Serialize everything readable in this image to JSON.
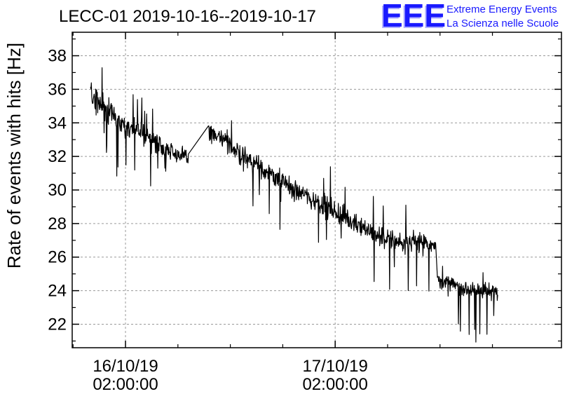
{
  "title": "LECC-01 2019-10-16--2019-10-17",
  "logo": {
    "mark": "EEE",
    "line1": "Extreme Energy Events",
    "line2": "La Scienza nelle Scuole",
    "color": "#1a1aff"
  },
  "chart_data": {
    "type": "line",
    "title": "LECC-01 2019-10-16--2019-10-17",
    "xlabel": "",
    "ylabel": "Rate of events with hits [Hz]",
    "ylim": [
      20.6,
      39.4
    ],
    "yticks": [
      22,
      24,
      26,
      28,
      30,
      32,
      34,
      36,
      38
    ],
    "xlim_hours": [
      -6.1,
      49.9
    ],
    "xticks": [
      {
        "hours": 0,
        "line1": "16/10/19",
        "line2": "02:00:00"
      },
      {
        "hours": 24,
        "line1": "17/10/19",
        "line2": "02:00:00"
      }
    ],
    "grid": true,
    "legend": "none",
    "series_color": "#000000",
    "segments": [
      {
        "start_hours": -4.0,
        "end_hours": 7.2,
        "values": [
          35.7,
          35.2,
          34.7,
          34.2,
          33.9,
          33.6,
          33.3,
          33.0,
          32.7,
          32.4,
          32.1,
          31.9
        ],
        "noise": 0.9
      },
      {
        "start_hours": 9.5,
        "end_hours": 35.5,
        "values": [
          33.5,
          33.2,
          32.8,
          32.4,
          32.0,
          31.6,
          31.3,
          30.9,
          30.5,
          30.2,
          29.9,
          29.6,
          29.3,
          29.0,
          28.7,
          28.4,
          28.1,
          27.8,
          27.5,
          27.2,
          27.0,
          26.9,
          26.8,
          26.9,
          26.9,
          26.8
        ],
        "noise": 0.85
      },
      {
        "start_hours": 35.7,
        "end_hours": 42.6,
        "values": [
          24.6,
          24.4,
          24.3,
          24.2,
          24.1,
          24.0,
          23.9,
          23.9
        ],
        "noise": 0.7
      }
    ]
  }
}
